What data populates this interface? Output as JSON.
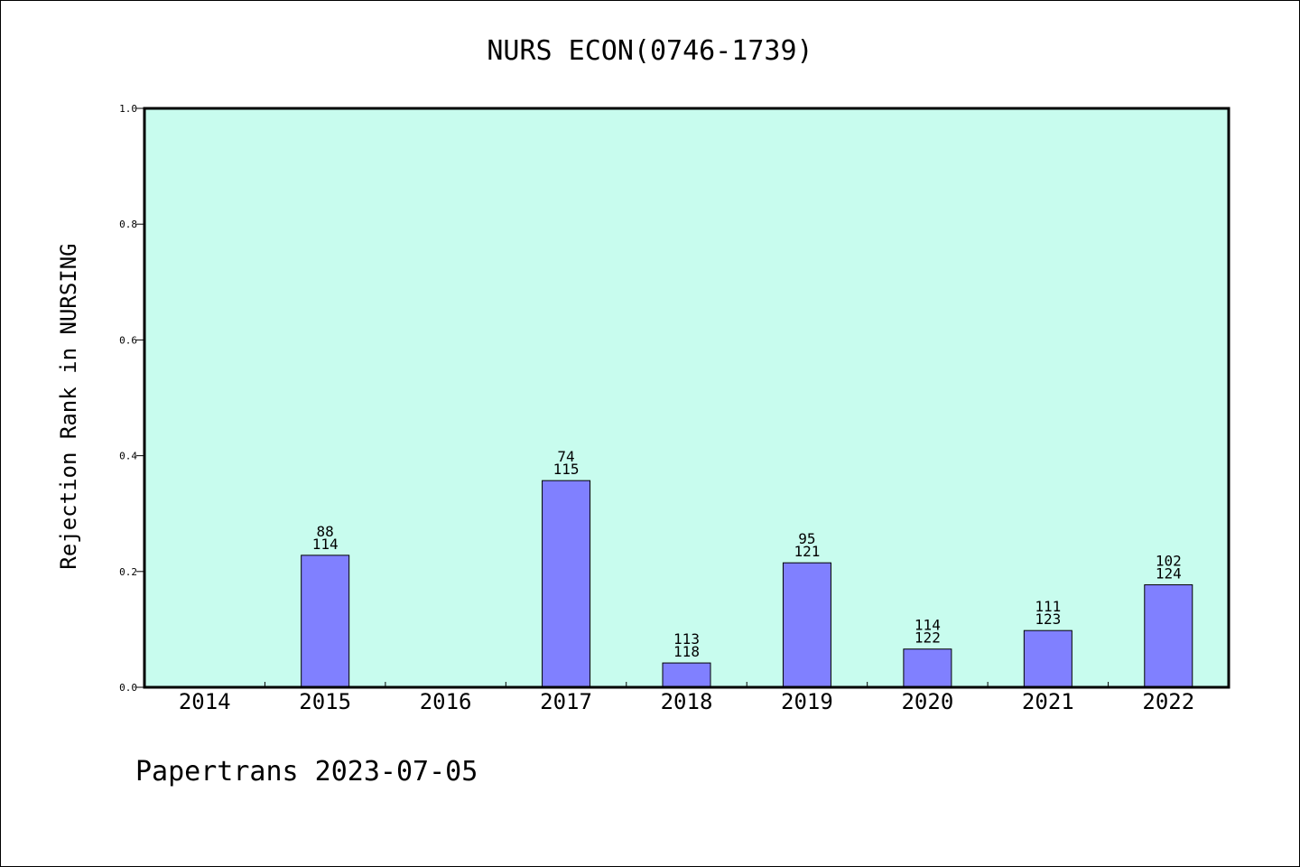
{
  "chart_data": {
    "type": "bar",
    "title": "NURS ECON(0746-1739)",
    "ylabel": "Rejection Rank in NURSING",
    "xlabel": "",
    "ylim": [
      0,
      1.0
    ],
    "yticks": [
      "0.0",
      "0.2",
      "0.4",
      "0.6",
      "0.8",
      "1.0"
    ],
    "grid": false,
    "categories": [
      "2014",
      "2015",
      "2016",
      "2017",
      "2018",
      "2019",
      "2020",
      "2021",
      "2022"
    ],
    "values": [
      null,
      0.228,
      null,
      0.357,
      0.042,
      0.215,
      0.066,
      0.098,
      0.177
    ],
    "label_top": [
      "",
      "88",
      "",
      "74",
      "113",
      "95",
      "114",
      "111",
      "102"
    ],
    "label_bottom": [
      "",
      "114",
      "",
      "115",
      "118",
      "121",
      "122",
      "123",
      "124"
    ],
    "colors": {
      "plot_bg": "#c8fcee",
      "bar_fill": "#8080ff",
      "bar_edge": "#000000"
    }
  },
  "footer": {
    "text": "Papertrans 2023-07-05"
  }
}
